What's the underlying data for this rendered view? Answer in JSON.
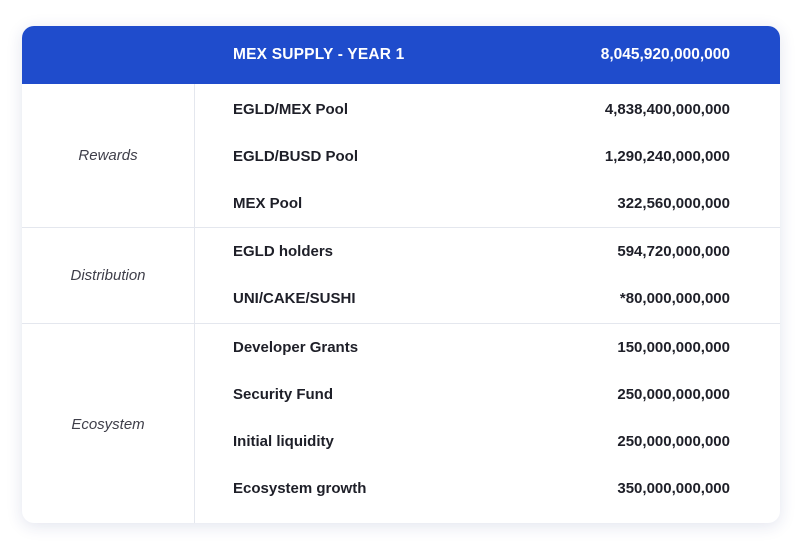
{
  "header": {
    "title": "MEX SUPPLY - YEAR 1",
    "total": "8,045,920,000,000"
  },
  "groups": [
    {
      "category": "Rewards",
      "rows": [
        {
          "label": "EGLD/MEX Pool",
          "value": "4,838,400,000,000"
        },
        {
          "label": "EGLD/BUSD Pool",
          "value": "1,290,240,000,000"
        },
        {
          "label": "MEX Pool",
          "value": "322,560,000,000"
        }
      ]
    },
    {
      "category": "Distribution",
      "rows": [
        {
          "label": "EGLD holders",
          "value": "594,720,000,000"
        },
        {
          "label": "UNI/CAKE/SUSHI",
          "value": "*80,000,000,000"
        }
      ]
    },
    {
      "category": "Ecosystem",
      "rows": [
        {
          "label": "Developer Grants",
          "value": "150,000,000,000"
        },
        {
          "label": "Security Fund",
          "value": "250,000,000,000"
        },
        {
          "label": "Initial liquidity",
          "value": "250,000,000,000"
        },
        {
          "label": "Ecosystem growth",
          "value": "350,000,000,000"
        }
      ]
    }
  ],
  "colors": {
    "header_bg": "#1f4ccc",
    "header_text": "#ffffff",
    "divider": "#e4e7ee",
    "text": "#1e1f28"
  }
}
